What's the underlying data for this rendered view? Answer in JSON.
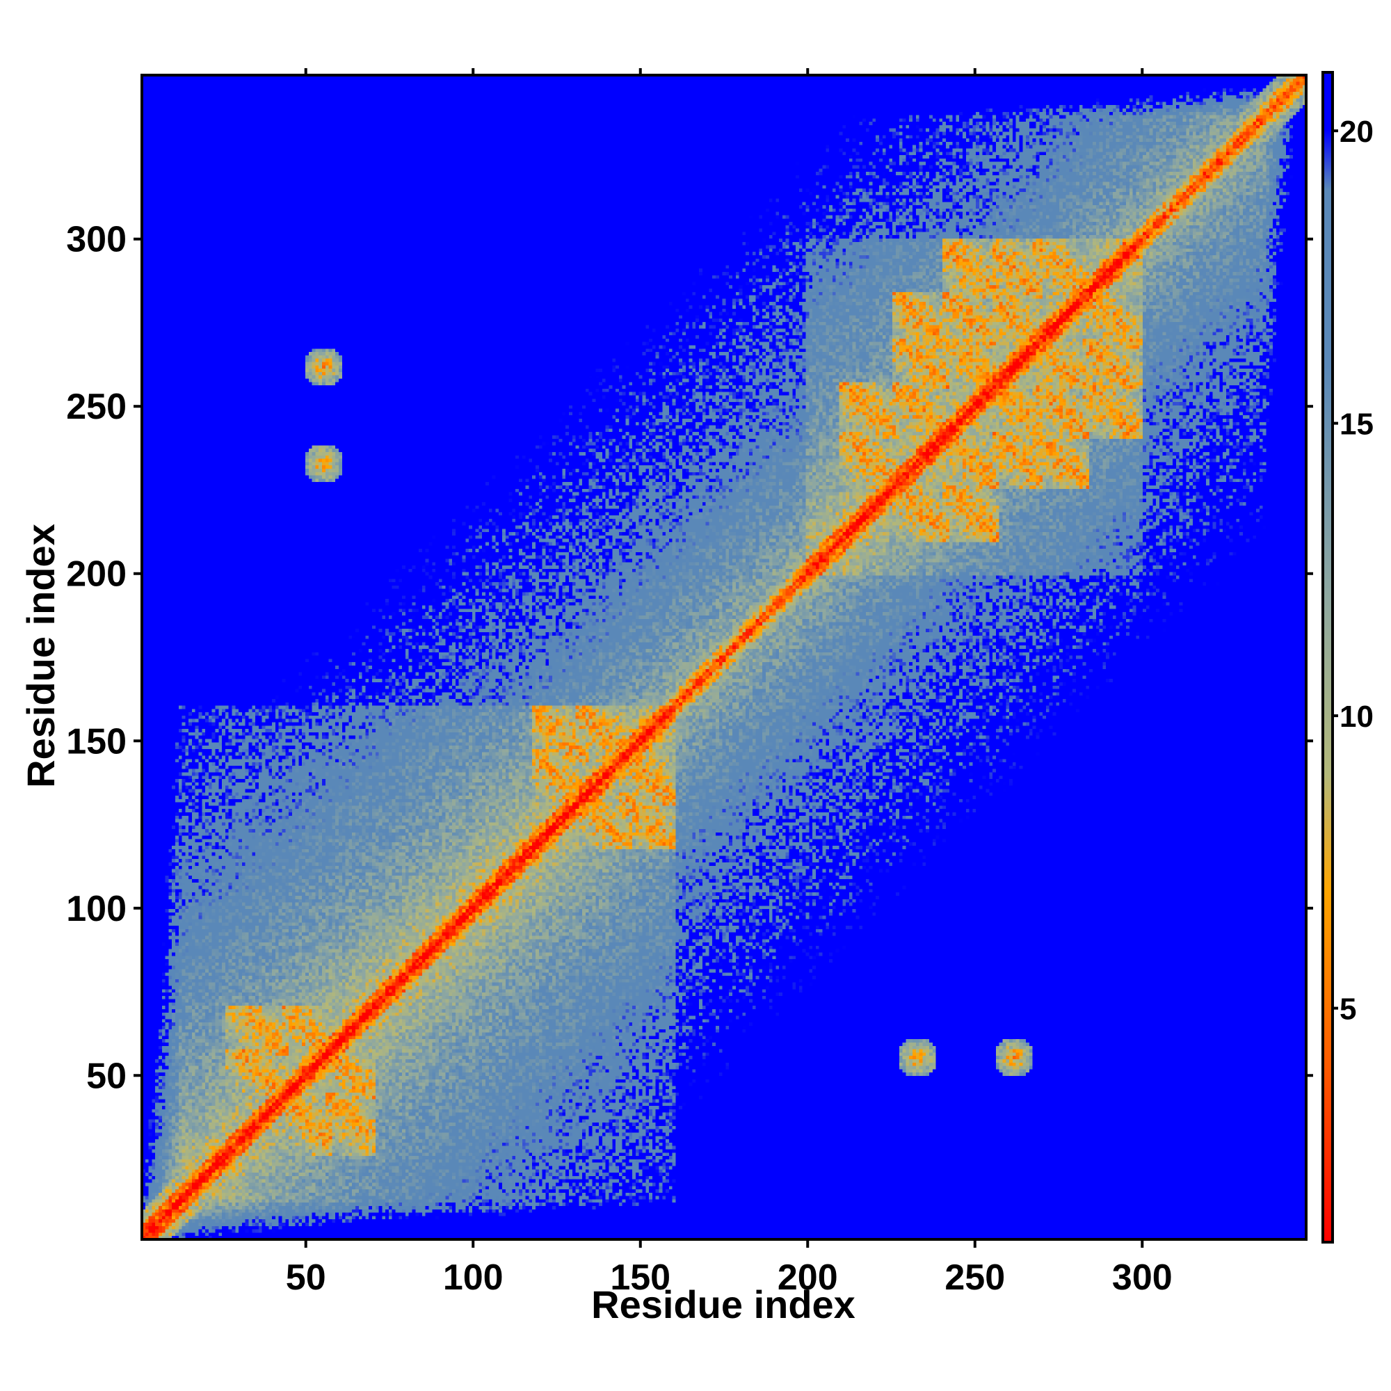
{
  "chart_data": {
    "type": "heatmap",
    "title": "",
    "xlabel": "Residue index",
    "ylabel": "Residue index",
    "x_range": [
      1,
      349
    ],
    "y_range": [
      1,
      349
    ],
    "x_ticks": [
      50,
      100,
      150,
      200,
      250,
      300
    ],
    "y_ticks": [
      50,
      100,
      150,
      200,
      250,
      300
    ],
    "colorbar": {
      "range": [
        1,
        21
      ],
      "ticks": [
        5,
        10,
        15,
        20
      ],
      "stops": [
        {
          "value": 1,
          "color": "#ff0000"
        },
        {
          "value": 4,
          "color": "#ff5a00"
        },
        {
          "value": 7,
          "color": "#ffa500"
        },
        {
          "value": 9,
          "color": "#b3b87a"
        },
        {
          "value": 12,
          "color": "#8fa8a0"
        },
        {
          "value": 16,
          "color": "#5a88b8"
        },
        {
          "value": 19,
          "color": "#5a88b8"
        },
        {
          "value": 20,
          "color": "#0000ff"
        }
      ]
    },
    "background_color": "#0000ff",
    "structure": {
      "note_units": "residue index",
      "domains": [
        {
          "start": 1,
          "end": 160
        },
        {
          "start": 200,
          "end": 300
        }
      ],
      "helices": [
        {
          "i": 28,
          "j": 42
        },
        {
          "i": 45,
          "j": 55
        },
        {
          "i": 58,
          "j": 68
        },
        {
          "i": 120,
          "j": 132
        },
        {
          "i": 133,
          "j": 145
        },
        {
          "i": 146,
          "j": 158
        },
        {
          "i": 212,
          "j": 225
        },
        {
          "i": 228,
          "j": 240
        },
        {
          "i": 243,
          "j": 255
        },
        {
          "i": 258,
          "j": 268
        },
        {
          "i": 270,
          "j": 282
        },
        {
          "i": 285,
          "j": 298
        }
      ],
      "contact_points": [
        {
          "x": 55,
          "y": 262
        },
        {
          "x": 55,
          "y": 233
        },
        {
          "x": 231,
          "y": 55
        },
        {
          "x": 262,
          "y": 55
        }
      ]
    }
  }
}
